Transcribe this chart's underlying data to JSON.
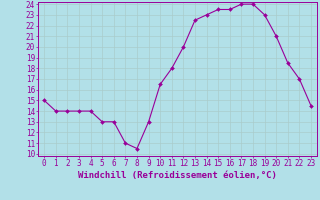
{
  "x": [
    0,
    1,
    2,
    3,
    4,
    5,
    6,
    7,
    8,
    9,
    10,
    11,
    12,
    13,
    14,
    15,
    16,
    17,
    18,
    19,
    20,
    21,
    22,
    23
  ],
  "y": [
    15,
    14,
    14,
    14,
    14,
    13,
    13,
    11,
    10.5,
    13,
    16.5,
    18,
    20,
    22.5,
    23,
    23.5,
    23.5,
    24,
    24,
    23,
    21,
    18.5,
    17,
    14.5
  ],
  "line_color": "#990099",
  "marker": "D",
  "marker_size": 2.0,
  "bg_color": "#b2e0e8",
  "grid_color": "#aacccc",
  "xlabel": "Windchill (Refroidissement éolien,°C)",
  "ylim": [
    10,
    24
  ],
  "xlim": [
    -0.5,
    23.5
  ],
  "yticks": [
    10,
    11,
    12,
    13,
    14,
    15,
    16,
    17,
    18,
    19,
    20,
    21,
    22,
    23,
    24
  ],
  "xticks": [
    0,
    1,
    2,
    3,
    4,
    5,
    6,
    7,
    8,
    9,
    10,
    11,
    12,
    13,
    14,
    15,
    16,
    17,
    18,
    19,
    20,
    21,
    22,
    23
  ],
  "tick_color": "#990099",
  "label_color": "#990099",
  "tick_fontsize": 5.5,
  "xlabel_fontsize": 6.5
}
